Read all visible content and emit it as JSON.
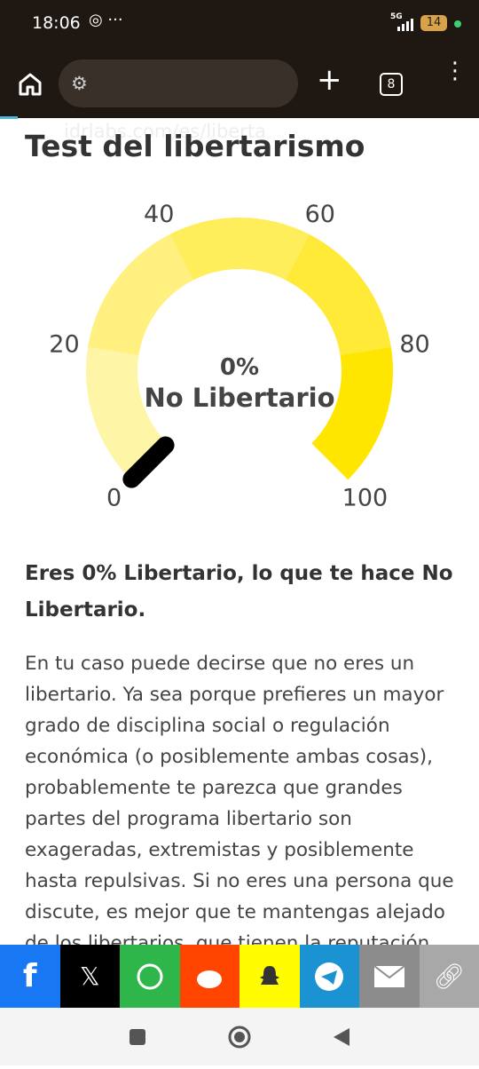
{
  "status_bar": {
    "time": "18:06",
    "network": "5G",
    "battery": "14"
  },
  "browser": {
    "url": "idrlabs.com/es/liberta",
    "tab_count": "8"
  },
  "article": {
    "title": "Test del libertarismo",
    "gauge": {
      "value": 0,
      "value_label": "0%",
      "result": "No Libertario",
      "range": [
        0,
        100
      ],
      "ticks": [
        0,
        20,
        40,
        60,
        80,
        100
      ],
      "colors": [
        "#fff5a6",
        "#fff07f",
        "#ffee5c",
        "#ffea38",
        "#ffe600"
      ],
      "needle_color": "#000000"
    },
    "heading": "Eres 0% Libertario, lo que te hace No Libertario.",
    "body": "En tu caso puede decirse que no eres un libertario. Ya sea porque prefieres un mayor grado de disciplina social o regulación económica (o posiblemente ambas cosas), probablemente te parezca que grandes partes del programa libertario son exageradas, extremistas y posiblemente hasta repulsivas. Si no eres una persona que discute, es mejor que te mantengas alejado de los libertarios, que tienen la reputación"
  }
}
